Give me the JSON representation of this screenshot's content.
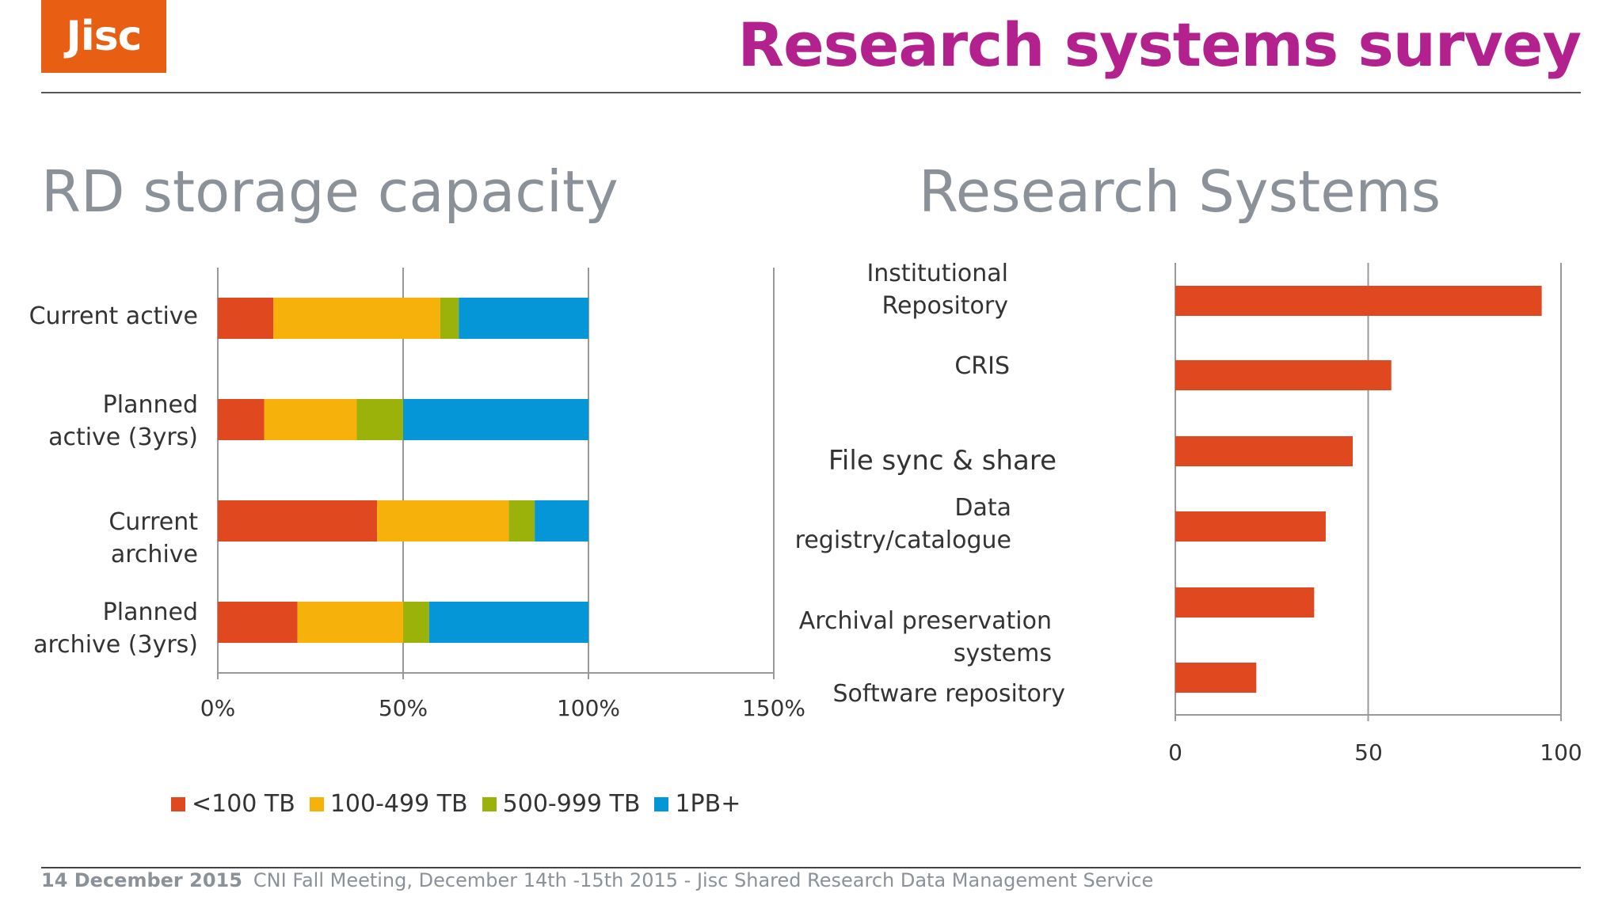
{
  "header": {
    "logo_text": "Jisc",
    "title": "Research systems survey"
  },
  "colors": {
    "title": "#b3218f",
    "logo_bg": "#e85e13",
    "bar": "#e0491f",
    "s1": "#e0491f",
    "s2": "#f6b20a",
    "s3": "#9bb20a",
    "s4": "#0496d6"
  },
  "left": {
    "title": "RD storage capacity",
    "labels": [
      {
        "l1": "Current active",
        "l2": ""
      },
      {
        "l1": "Planned",
        "l2": "active (3yrs)"
      },
      {
        "l1": "Current",
        "l2": "archive"
      },
      {
        "l1": "Planned",
        "l2": "archive (3yrs)"
      }
    ],
    "ticks": [
      "0%",
      "50%",
      "100%",
      "150%"
    ],
    "legend": [
      "<100 TB",
      "100-499 TB",
      "500-999 TB",
      "1PB+"
    ]
  },
  "right": {
    "title": "Research Systems",
    "labels": [
      {
        "l1": "Institutional",
        "l2": "Repository"
      },
      {
        "l1": "CRIS",
        "l2": ""
      },
      {
        "l1": "File sync & share",
        "l2": ""
      },
      {
        "l1": "Data",
        "l2": "registry/catalogue"
      },
      {
        "l1": "Archival preservation",
        "l2": "systems"
      },
      {
        "l1": "Software repository",
        "l2": ""
      }
    ],
    "ticks": [
      "0",
      "50",
      "100"
    ]
  },
  "footer": {
    "date": "14 December 2015",
    "text": "CNI Fall Meeting, December 14th -15th 2015 - Jisc Shared Research Data Management Service"
  },
  "chart_data": [
    {
      "type": "bar",
      "orientation": "horizontal",
      "stacked": true,
      "title": "RD storage capacity",
      "categories": [
        "Current active",
        "Planned active (3yrs)",
        "Current archive",
        "Planned archive (3yrs)"
      ],
      "series": [
        {
          "name": "<100 TB",
          "values": [
            15,
            12.5,
            43,
            21.5
          ]
        },
        {
          "name": "100-499 TB",
          "values": [
            45,
            25,
            35.5,
            28.5
          ]
        },
        {
          "name": "500-999 TB",
          "values": [
            5,
            12.5,
            7,
            7
          ]
        },
        {
          "name": "1PB+",
          "values": [
            35,
            50,
            14.5,
            43
          ]
        }
      ],
      "xlim": [
        0,
        150
      ],
      "x_unit": "%",
      "grid": true,
      "legend": "bottom"
    },
    {
      "type": "bar",
      "orientation": "horizontal",
      "title": "Research Systems",
      "categories": [
        "Institutional Repository",
        "CRIS",
        "File sync & share",
        "Data registry/catalogue",
        "Archival preservation systems",
        "Software repository"
      ],
      "values": [
        95,
        56,
        46,
        39,
        36,
        21
      ],
      "xlim": [
        0,
        100
      ],
      "grid": true
    }
  ]
}
